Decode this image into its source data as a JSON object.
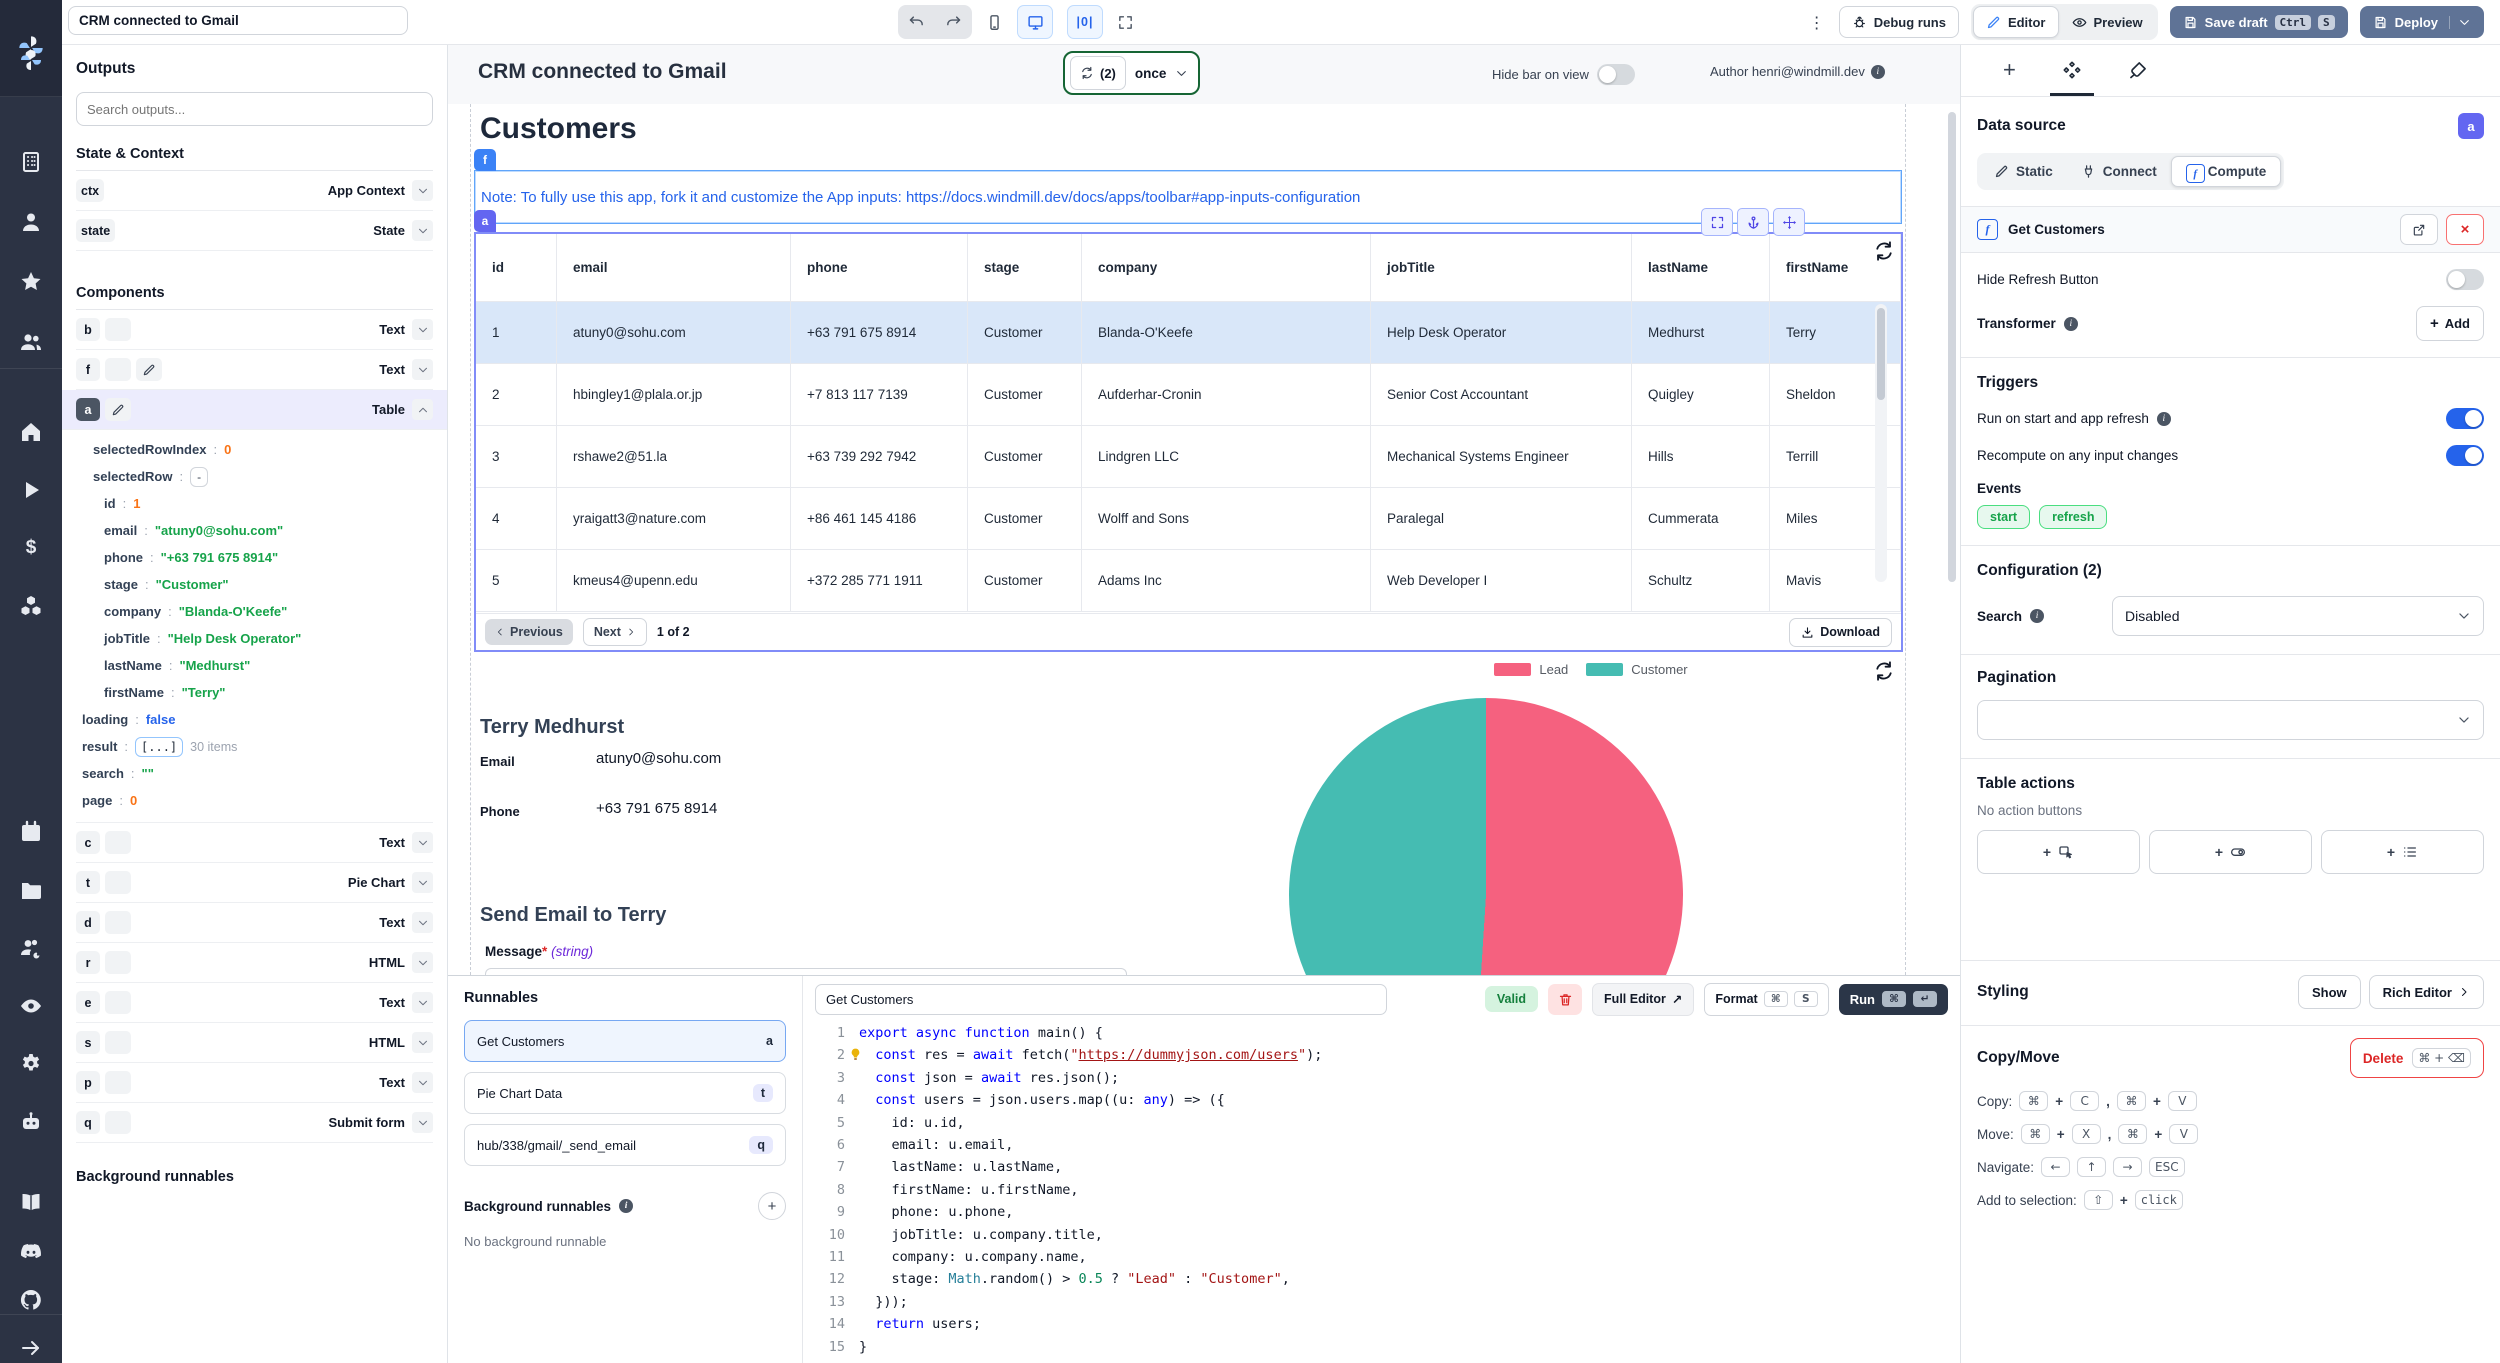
{
  "topbar": {
    "app_title_input": "CRM connected to Gmail",
    "debug_runs": "Debug runs",
    "editor": "Editor",
    "preview": "Preview",
    "save_draft": "Save draft",
    "save_kbd": [
      "Ctrl",
      "S"
    ],
    "deploy": "Deploy"
  },
  "rail": {
    "icons": [
      [
        "windmill",
        48
      ],
      [
        "building",
        150
      ],
      [
        "user",
        210
      ],
      [
        "star",
        270
      ],
      [
        "users",
        330
      ],
      [
        "home",
        420
      ],
      [
        "play",
        478
      ],
      [
        "dollar",
        536
      ],
      [
        "cubes",
        594
      ],
      [
        "calendar",
        820
      ],
      [
        "folder",
        878
      ],
      [
        "users-gear",
        936
      ],
      [
        "eye",
        994
      ],
      [
        "gear",
        1052
      ],
      [
        "bot",
        1110
      ],
      [
        "book",
        1190
      ],
      [
        "discord",
        1240
      ],
      [
        "github",
        1288
      ],
      [
        "arrow-right",
        1336
      ]
    ],
    "dividers": [
      368,
      1314
    ]
  },
  "outputs_panel": {
    "title": "Outputs",
    "search_placeholder": "Search outputs...",
    "state_context_title": "State & Context",
    "state_rows": [
      {
        "id": "ctx",
        "type": "App Context"
      },
      {
        "id": "state",
        "type": "State"
      }
    ],
    "components_title": "Components",
    "rows_top": [
      {
        "id": "b",
        "type": "Text",
        "icons": [
          "hand"
        ]
      },
      {
        "id": "f",
        "type": "Text",
        "icons": [
          "hand",
          "pencil"
        ]
      }
    ],
    "row_a": {
      "id": "a",
      "type": "Table",
      "icons": [
        "pencil"
      ]
    },
    "props": [
      {
        "k": "selectedRowIndex",
        "v": "0",
        "c": "num",
        "lvl": 1
      },
      {
        "k": "selectedRow",
        "v": "-",
        "c": "chip",
        "lvl": 1
      },
      {
        "k": "id",
        "v": "1",
        "c": "num",
        "lvl": 2
      },
      {
        "k": "email",
        "v": "\"atuny0@sohu.com\"",
        "c": "str",
        "lvl": 2
      },
      {
        "k": "phone",
        "v": "\"+63 791 675 8914\"",
        "c": "str",
        "lvl": 2
      },
      {
        "k": "stage",
        "v": "\"Customer\"",
        "c": "str",
        "lvl": 2
      },
      {
        "k": "company",
        "v": "\"Blanda-O'Keefe\"",
        "c": "str",
        "lvl": 2
      },
      {
        "k": "jobTitle",
        "v": "\"Help Desk Operator\"",
        "c": "str",
        "lvl": 2
      },
      {
        "k": "lastName",
        "v": "\"Medhurst\"",
        "c": "str",
        "lvl": 2
      },
      {
        "k": "firstName",
        "v": "\"Terry\"",
        "c": "str",
        "lvl": 2
      },
      {
        "k": "loading",
        "v": "false",
        "c": "bool",
        "lvl": 0
      },
      {
        "k": "result",
        "v": "[...]",
        "c": "chipblue",
        "suffix": "30 items",
        "lvl": 0
      },
      {
        "k": "search",
        "v": "\"\"",
        "c": "str",
        "lvl": 0
      },
      {
        "k": "page",
        "v": "0",
        "c": "num",
        "lvl": 0
      }
    ],
    "rows_bottom": [
      {
        "id": "c",
        "type": "Text",
        "icons": [
          "hand"
        ]
      },
      {
        "id": "t",
        "type": "Pie Chart",
        "icons": [
          "hand"
        ]
      },
      {
        "id": "d",
        "type": "Text",
        "icons": [
          "hand"
        ]
      },
      {
        "id": "r",
        "type": "HTML",
        "icons": [
          "hand"
        ]
      },
      {
        "id": "e",
        "type": "Text",
        "icons": [
          "hand"
        ]
      },
      {
        "id": "s",
        "type": "HTML",
        "icons": [
          "hand"
        ]
      },
      {
        "id": "p",
        "type": "Text",
        "icons": [
          "hand"
        ]
      },
      {
        "id": "q",
        "type": "Submit form",
        "icons": [
          "hand"
        ]
      }
    ],
    "background_title": "Background runnables"
  },
  "canvas": {
    "header": {
      "title": "CRM connected to Gmail",
      "refresh_count": "(2)",
      "refresh_mode": "once",
      "hide_bar_label": "Hide bar on view",
      "author": "Author henri@windmill.dev"
    },
    "customers_title": "Customers",
    "note": "Note: To fully use this app, fork it and customize the App inputs: https://docs.windmill.dev/docs/apps/toolbar#app-inputs-configuration",
    "badge_f": "f",
    "badge_a": "a",
    "table": {
      "columns": [
        "id",
        "email",
        "phone",
        "stage",
        "company",
        "jobTitle",
        "lastName",
        "firstName"
      ],
      "rows": [
        [
          "1",
          "atuny0@sohu.com",
          "+63 791 675 8914",
          "Customer",
          "Blanda-O'Keefe",
          "Help Desk Operator",
          "Medhurst",
          "Terry"
        ],
        [
          "2",
          "hbingley1@plala.or.jp",
          "+7 813 117 7139",
          "Customer",
          "Aufderhar-Cronin",
          "Senior Cost Accountant",
          "Quigley",
          "Sheldon"
        ],
        [
          "3",
          "rshawe2@51.la",
          "+63 739 292 7942",
          "Customer",
          "Lindgren LLC",
          "Mechanical Systems Engineer",
          "Hills",
          "Terrill"
        ],
        [
          "4",
          "yraigatt3@nature.com",
          "+86 461 145 4186",
          "Customer",
          "Wolff and Sons",
          "Paralegal",
          "Cummerata",
          "Miles"
        ],
        [
          "5",
          "kmeus4@upenn.edu",
          "+372 285 771 1911",
          "Customer",
          "Adams Inc",
          "Web Developer I",
          "Schultz",
          "Mavis"
        ]
      ],
      "selected_row_index": 0,
      "pagination": {
        "previous": "Previous",
        "next": "Next",
        "page_info": "1 of 2",
        "download": "Download"
      }
    },
    "detail": {
      "name": "Terry Medhurst",
      "email_label": "Email",
      "email": "atuny0@sohu.com",
      "phone_label": "Phone",
      "phone": "+63 791 675 8914"
    },
    "send_email": {
      "title": "Send Email to Terry",
      "message_label": "Message",
      "required_mark": "*",
      "type_hint": "(string)"
    },
    "chart_data": {
      "type": "pie",
      "labels": [
        "Lead",
        "Customer"
      ],
      "values": [
        51,
        49
      ],
      "colors": [
        "#f5617f",
        "#45bcb2"
      ],
      "legend_position": "top",
      "title": ""
    }
  },
  "runnables_panel": {
    "title": "Runnables",
    "items": [
      {
        "label": "Get Customers",
        "badge": "a",
        "selected": true,
        "badge_pill": false
      },
      {
        "label": "Pie Chart Data",
        "badge": "t",
        "selected": false,
        "badge_pill": true
      },
      {
        "label": "hub/338/gmail/_send_email",
        "badge": "q",
        "selected": false,
        "badge_pill": true
      }
    ],
    "background_title": "Background runnables",
    "background_empty": "No background runnable"
  },
  "code_editor": {
    "name_input": "Get Customers",
    "valid_label": "Valid",
    "full_editor_label": "Full Editor",
    "format_label": "Format",
    "format_kbd": [
      "⌘",
      "S"
    ],
    "run_label": "Run",
    "run_kbd": [
      "⌘",
      "↵"
    ],
    "lines": [
      {
        "n": "1",
        "t": [
          [
            "k",
            "export async function "
          ],
          [
            "p",
            "main() {"
          ]
        ]
      },
      {
        "n": "2",
        "bulb": true,
        "t": [
          [
            "p",
            "  "
          ],
          [
            "k",
            "const"
          ],
          [
            "p",
            " res = "
          ],
          [
            "k",
            "await"
          ],
          [
            "p",
            " fetch("
          ],
          [
            "s",
            "\""
          ],
          [
            "u",
            "https://dummyjson.com/users"
          ],
          [
            "s",
            "\""
          ],
          [
            "p",
            ");"
          ]
        ]
      },
      {
        "n": "3",
        "t": [
          [
            "p",
            "  "
          ],
          [
            "k",
            "const"
          ],
          [
            "p",
            " json = "
          ],
          [
            "k",
            "await"
          ],
          [
            "p",
            " res.json();"
          ]
        ]
      },
      {
        "n": "4",
        "t": [
          [
            "p",
            "  "
          ],
          [
            "k",
            "const"
          ],
          [
            "p",
            " users = json.users.map((u: "
          ],
          [
            "k",
            "any"
          ],
          [
            "p",
            ") => ({"
          ]
        ]
      },
      {
        "n": "5",
        "t": [
          [
            "p",
            "    id: u.id,"
          ]
        ]
      },
      {
        "n": "6",
        "t": [
          [
            "p",
            "    email: u.email,"
          ]
        ]
      },
      {
        "n": "7",
        "t": [
          [
            "p",
            "    lastName: u.lastName,"
          ]
        ]
      },
      {
        "n": "8",
        "t": [
          [
            "p",
            "    firstName: u.firstName,"
          ]
        ]
      },
      {
        "n": "9",
        "t": [
          [
            "p",
            "    phone: u.phone,"
          ]
        ]
      },
      {
        "n": "10",
        "t": [
          [
            "p",
            "    jobTitle: u.company.title,"
          ]
        ]
      },
      {
        "n": "11",
        "t": [
          [
            "p",
            "    company: u.company.name,"
          ]
        ]
      },
      {
        "n": "12",
        "t": [
          [
            "p",
            "    stage: "
          ],
          [
            "t",
            "Math"
          ],
          [
            "p",
            ".random() > "
          ],
          [
            "n",
            "0.5"
          ],
          [
            "p",
            " ? "
          ],
          [
            "s",
            "\"Lead\""
          ],
          [
            "p",
            " : "
          ],
          [
            "s",
            "\"Customer\""
          ],
          [
            "p",
            ","
          ]
        ]
      },
      {
        "n": "13",
        "t": [
          [
            "p",
            "  }));"
          ]
        ]
      },
      {
        "n": "14",
        "t": [
          [
            "p",
            "  "
          ],
          [
            "k",
            "return"
          ],
          [
            "p",
            " users;"
          ]
        ]
      },
      {
        "n": "15",
        "t": [
          [
            "p",
            "}"
          ]
        ]
      }
    ]
  },
  "inspector": {
    "data_source_title": "Data source",
    "badge": "a",
    "source_tabs": [
      {
        "label": "Static",
        "icon": "pencil"
      },
      {
        "label": "Connect",
        "icon": "plug"
      },
      {
        "label": "Compute",
        "icon": "fn",
        "active": true
      }
    ],
    "runnable_name": "Get Customers",
    "hide_refresh_label": "Hide Refresh Button",
    "transformer_label": "Transformer",
    "add_label": "Add",
    "triggers_title": "Triggers",
    "run_on_start": "Run on start and app refresh",
    "recompute": "Recompute on any input changes",
    "events_label": "Events",
    "events": [
      "start",
      "refresh"
    ],
    "configuration_title": "Configuration (2)",
    "search_label": "Search",
    "search_value": "Disabled",
    "pagination_title": "Pagination",
    "table_actions_title": "Table actions",
    "no_actions": "No action buttons",
    "action_buttons": [
      "cursor-box",
      "toggle-pill",
      "list"
    ],
    "styling_title": "Styling",
    "show_label": "Show",
    "rich_editor_label": "Rich Editor",
    "copy_move_title": "Copy/Move",
    "delete_label": "Delete",
    "delete_kbd": "⌘ + ⌫",
    "shortcuts": [
      {
        "label": "Copy:",
        "parts": [
          "K:⌘",
          "T:+",
          "K:C",
          "T:,",
          "K:⌘",
          "T:+",
          "K:V"
        ]
      },
      {
        "label": "Move:",
        "parts": [
          "K:⌘",
          "T:+",
          "K:X",
          "T:,",
          "K:⌘",
          "T:+",
          "K:V"
        ]
      },
      {
        "label": "Navigate:",
        "parts": [
          "K:←",
          "K:↑",
          "K:→",
          "K:ESC"
        ]
      },
      {
        "label": "Add to selection:",
        "parts": [
          "K:⇧",
          "T:+",
          "KM:click"
        ]
      }
    ]
  }
}
